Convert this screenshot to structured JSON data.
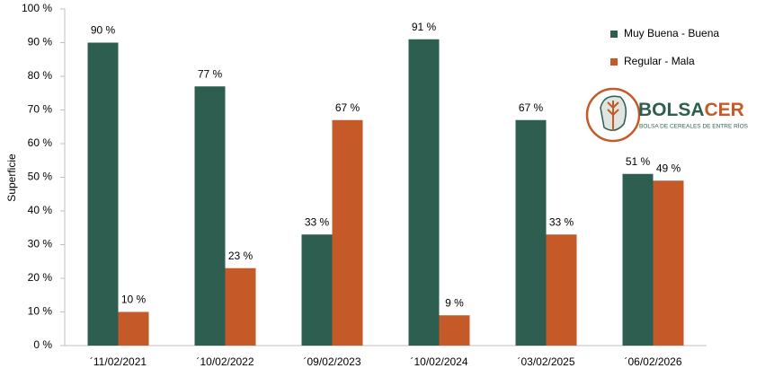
{
  "chart_data": {
    "type": "bar",
    "y_label": "Superficie",
    "categories": [
      "´11/02/2021",
      "´10/02/2022",
      "´09/02/2023",
      "´10/02/2024",
      "´03/02/2025",
      "´06/02/2026"
    ],
    "series": [
      {
        "name": "Muy Buena - Buena",
        "color": "#2e5e4f",
        "values": [
          90,
          77,
          33,
          91,
          67,
          51
        ],
        "value_labels": [
          "90 %",
          "77 %",
          "33 %",
          "91 %",
          "67 %",
          "51 %"
        ]
      },
      {
        "name": "Regular - Mala",
        "color": "#c55a28",
        "values": [
          10,
          23,
          67,
          9,
          33,
          49
        ],
        "value_labels": [
          "10 %",
          "23 %",
          "67 %",
          "9 %",
          "33 %",
          "49 %"
        ]
      }
    ],
    "ylim": [
      0,
      100
    ],
    "yticks": [
      {
        "value": 0,
        "label": "0 %"
      },
      {
        "value": 10,
        "label": "10 %"
      },
      {
        "value": 20,
        "label": "20 %"
      },
      {
        "value": 30,
        "label": "30 %"
      },
      {
        "value": 40,
        "label": "40 %"
      },
      {
        "value": 50,
        "label": "50 %"
      },
      {
        "value": 60,
        "label": "60 %"
      },
      {
        "value": 70,
        "label": "70 %"
      },
      {
        "value": 80,
        "label": "80 %"
      },
      {
        "value": 90,
        "label": "90 %"
      },
      {
        "value": 100,
        "label": "100 %"
      }
    ],
    "grid": false,
    "legend": "top-right",
    "logo": {
      "name_part1": "BOLSA",
      "name_part2": "CER",
      "subtitle": "BOLSA DE CEREALES DE ENTRE RÍOS"
    }
  }
}
